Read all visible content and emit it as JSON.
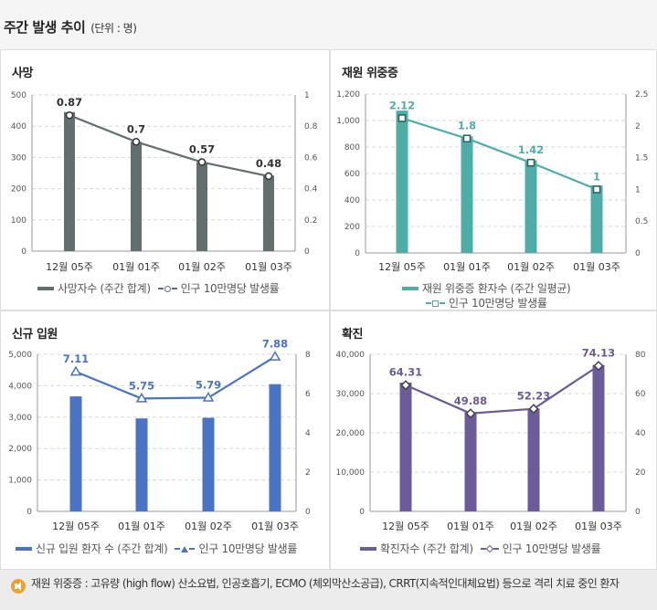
{
  "page": {
    "title": "주간 발생 추이",
    "unit": "(단위 : 명)"
  },
  "footnote": "재원 위중증 : 고유량 (high flow) 산소요법, 인공호흡기, ECMO (체외막산소공급), CRRT(지속적인대체요법) 등으로 격리 치료 중인 환자",
  "chart_data": [
    {
      "id": "deaths",
      "type": "bar+line",
      "title": "사망",
      "categories": [
        "12월 05주",
        "01월 01주",
        "01월 02주",
        "01월 03주"
      ],
      "bar": {
        "name": "사망자수 (주간 합계)",
        "values": [
          445,
          350,
          285,
          242
        ],
        "color": "#636e6e"
      },
      "line": {
        "name": "인구 10만명당 발생률",
        "values": [
          0.87,
          0.7,
          0.57,
          0.48
        ],
        "labels": [
          "0.87",
          "0.7",
          "0.57",
          "0.48"
        ],
        "color": "#636e6e",
        "marker": "circle"
      },
      "ylim_left": [
        0,
        500
      ],
      "yticks_left": [
        "0",
        "100",
        "200",
        "300",
        "400",
        "500"
      ],
      "ylim_right": [
        0,
        1
      ],
      "yticks_right": [
        "0",
        "0.2",
        "0.4",
        "0.6",
        "0.8",
        "1"
      ],
      "legend": "bottom",
      "grid": true
    },
    {
      "id": "critical",
      "type": "bar+line",
      "title": "재원 위중증",
      "categories": [
        "12월 05주",
        "01월 01주",
        "01월 02주",
        "01월 03주"
      ],
      "bar": {
        "name": "재원 위중증 환자수 (주간 일평균)",
        "values": [
          1075,
          880,
          700,
          510
        ],
        "color": "#4fada8"
      },
      "line": {
        "name": "인구 10만명당 발생률",
        "values": [
          2.12,
          1.8,
          1.42,
          1
        ],
        "labels": [
          "2.12",
          "1.8",
          "1.42",
          "1"
        ],
        "color": "#4fada8",
        "marker": "square"
      },
      "ylim_left": [
        0,
        1200
      ],
      "yticks_left": [
        "0",
        "200",
        "400",
        "600",
        "800",
        "1,000",
        "1,200"
      ],
      "ylim_right": [
        0,
        2.5
      ],
      "yticks_right": [
        "0",
        "0.5",
        "1",
        "1.5",
        "2",
        "2.5"
      ],
      "legend": "bottom",
      "grid": true
    },
    {
      "id": "admissions",
      "type": "bar+line",
      "title": "신규 입원",
      "categories": [
        "12월 05주",
        "01월 01주",
        "01월 02주",
        "01월 03주"
      ],
      "bar": {
        "name": "신규 입원 환자 수 (주간 합계)",
        "values": [
          3660,
          2960,
          2980,
          4050
        ],
        "color": "#4a73c4"
      },
      "line": {
        "name": "인구 10만명당 발생률",
        "values": [
          7.11,
          5.75,
          5.79,
          7.88
        ],
        "labels": [
          "7.11",
          "5.75",
          "5.79",
          "7.88"
        ],
        "color": "#4a73c4",
        "marker": "triangle"
      },
      "ylim_left": [
        0,
        5000
      ],
      "yticks_left": [
        "0",
        "1,000",
        "2,000",
        "3,000",
        "4,000",
        "5,000"
      ],
      "ylim_right": [
        0,
        8
      ],
      "yticks_right": [
        "0",
        "2",
        "4",
        "6",
        "8"
      ],
      "legend": "bottom",
      "grid": true
    },
    {
      "id": "confirmed",
      "type": "bar+line",
      "title": "확진",
      "categories": [
        "12월 05주",
        "01월 01주",
        "01월 02주",
        "01월 03주"
      ],
      "bar": {
        "name": "확진자수 (주간 합계)",
        "values": [
          32800,
          25300,
          26200,
          37300
        ],
        "color": "#6b5b98"
      },
      "line": {
        "name": "인구 10만명당 발생률",
        "values": [
          64.31,
          49.88,
          52.23,
          74.13
        ],
        "labels": [
          "64.31",
          "49.88",
          "52.23",
          "74.13"
        ],
        "color": "#6b5b98",
        "marker": "diamond"
      },
      "ylim_left": [
        0,
        40000
      ],
      "yticks_left": [
        "0",
        "10,000",
        "20,000",
        "30,000",
        "40,000"
      ],
      "ylim_right": [
        0,
        80
      ],
      "yticks_right": [
        "0",
        "20",
        "40",
        "60",
        "80"
      ],
      "legend": "bottom",
      "grid": true
    }
  ]
}
